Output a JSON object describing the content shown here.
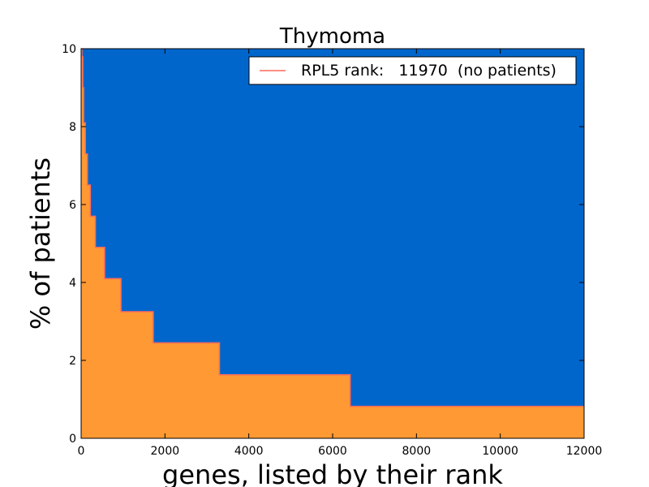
{
  "chart_data": {
    "type": "area",
    "title": "Thymoma",
    "xlabel": "genes, listed by their rank",
    "ylabel": "% of patients",
    "xlim": [
      0,
      12000
    ],
    "ylim": [
      0,
      10
    ],
    "xticks": [
      0,
      2000,
      4000,
      6000,
      8000,
      10000,
      12000
    ],
    "yticks": [
      0,
      2,
      4,
      6,
      8,
      10
    ],
    "xtick_labels": [
      "0",
      "2000",
      "4000",
      "6000",
      "8000",
      "10000",
      "12000"
    ],
    "ytick_labels": [
      "0",
      "2",
      "4",
      "6",
      "8",
      "10"
    ],
    "grid": false,
    "legend_position": "top-right",
    "legend": {
      "label": "RPL5 rank:   11970  (no patients)",
      "line_color": "#ff6a5a"
    },
    "colors": {
      "background_area": "#0066cc",
      "filled_area": "#ff9933",
      "step_line": "#ff6a5a"
    },
    "series": [
      {
        "x": [
          0,
          20,
          40,
          60,
          100,
          150,
          220,
          340,
          560,
          950,
          1720,
          3300,
          6420,
          12000
        ],
        "y": [
          10,
          9.8,
          9.0,
          8.1,
          7.3,
          6.5,
          5.7,
          4.9,
          4.1,
          3.25,
          2.45,
          1.63,
          0.82,
          0.82
        ]
      }
    ]
  }
}
